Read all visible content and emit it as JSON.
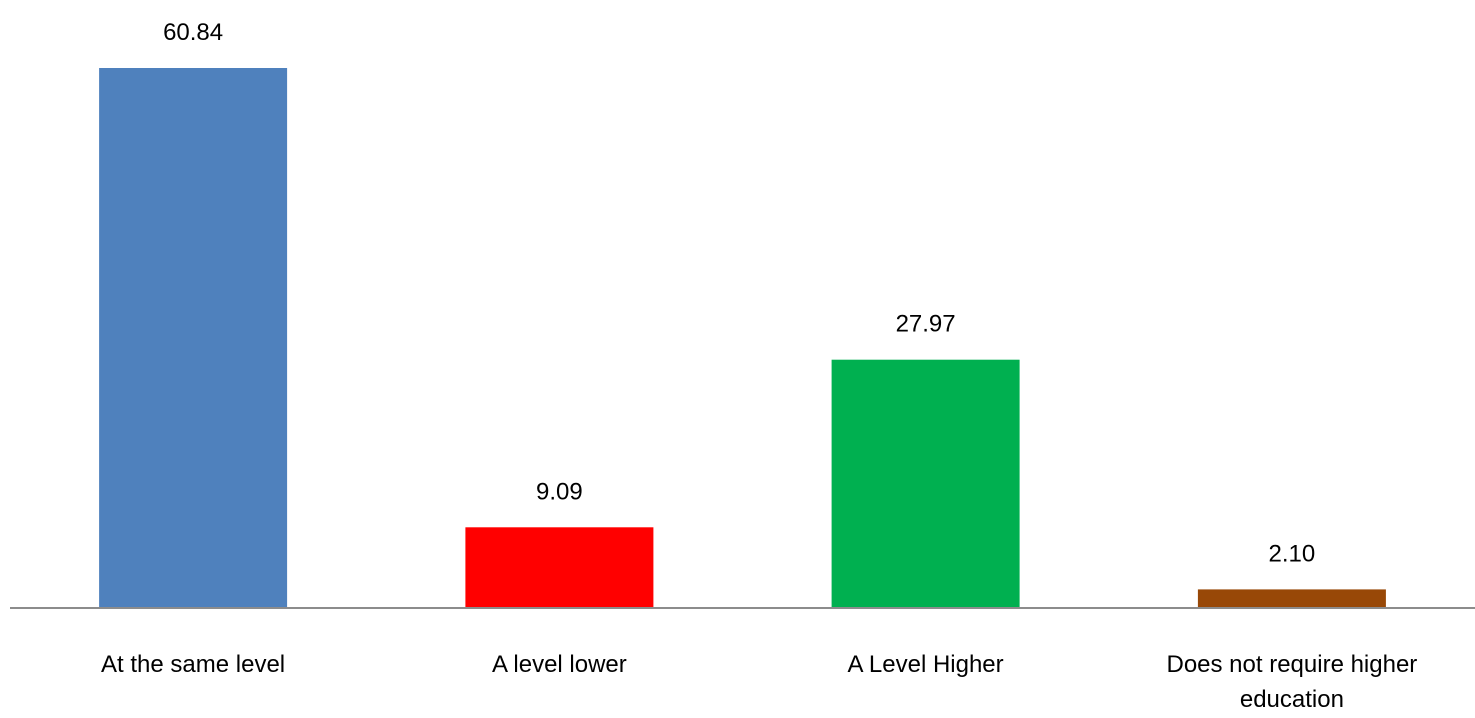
{
  "chart_data": {
    "type": "bar",
    "title": "",
    "xlabel": "",
    "ylabel": "",
    "ylim": [
      0,
      60.84
    ],
    "grid": false,
    "legend": "none",
    "categories": [
      [
        "At the same level"
      ],
      [
        "A level lower"
      ],
      [
        "A Level Higher"
      ],
      [
        "Does not require higher",
        "education"
      ]
    ],
    "values": [
      60.84,
      9.09,
      27.97,
      2.1
    ],
    "data_labels": [
      "60.84",
      "9.09",
      "27.97",
      "2.10"
    ],
    "colors": [
      "#4f81bd",
      "#ff0000",
      "#00b050",
      "#984807"
    ],
    "axis_color": "#8c8c8c"
  }
}
